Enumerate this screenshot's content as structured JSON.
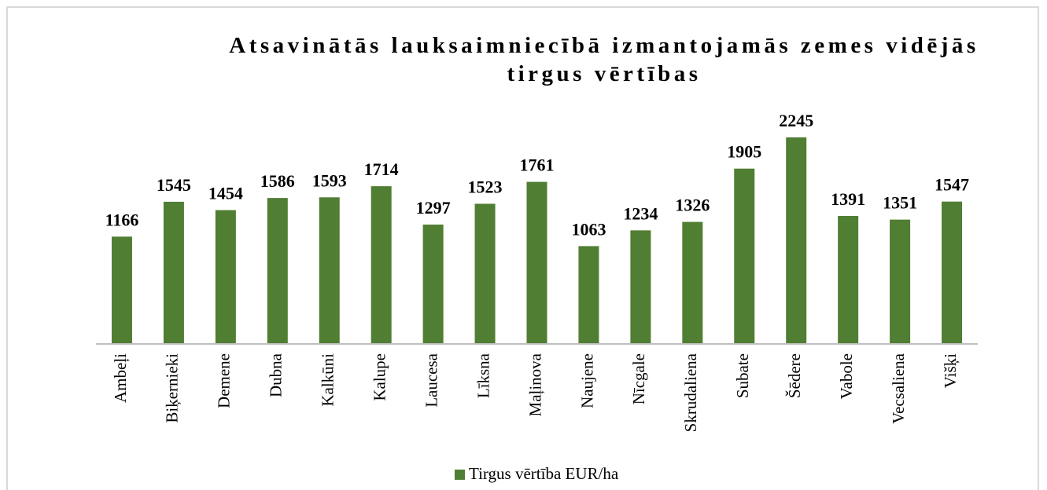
{
  "chart_data": {
    "type": "bar",
    "title": "Atsavinātās lauksaimniecībā izmantojamās zemes vidējās tirgus vērtības",
    "categories": [
      "Ambeļi",
      "Biķernieki",
      "Demene",
      "Dubna",
      "Kalkūni",
      "Kalupe",
      "Laucesa",
      "Līksna",
      "Maļinova",
      "Naujene",
      "Nīcgale",
      "Skrudaliena",
      "Subate",
      "Šēdere",
      "Vabole",
      "Vecsaliena",
      "Višķi"
    ],
    "series": [
      {
        "name": "Tirgus vērtība EUR/ha",
        "color": "#507e32",
        "values": [
          1166,
          1545,
          1454,
          1586,
          1593,
          1714,
          1297,
          1523,
          1761,
          1063,
          1234,
          1326,
          1905,
          2245,
          1391,
          1351,
          1547
        ]
      }
    ],
    "ylim": [
      0,
      2500
    ],
    "legend": "bottom"
  }
}
